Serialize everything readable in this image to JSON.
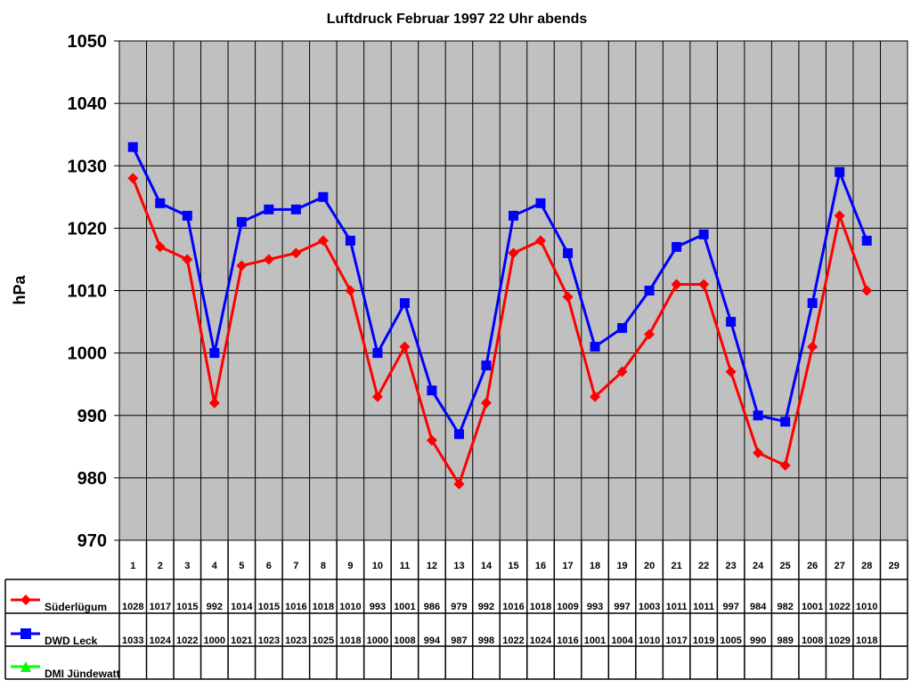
{
  "chart_data": {
    "type": "line",
    "title": "Luftdruck Februar 1997 22 Uhr abends",
    "xlabel": "",
    "ylabel": "hPa",
    "ylim": [
      970,
      1050
    ],
    "yticks": [
      "970",
      "980",
      "990",
      "1000",
      "1010",
      "1020",
      "1030",
      "1040",
      "1050"
    ],
    "grid": true,
    "legend": "data-table-left",
    "categories": [
      "1",
      "2",
      "3",
      "4",
      "5",
      "6",
      "7",
      "8",
      "9",
      "10",
      "11",
      "12",
      "13",
      "14",
      "15",
      "16",
      "17",
      "18",
      "19",
      "20",
      "21",
      "22",
      "23",
      "24",
      "25",
      "26",
      "27",
      "28",
      "29"
    ],
    "series": [
      {
        "name": "Süderlügum",
        "color": "#ff0000",
        "marker": "diamond",
        "values": [
          1028,
          1017,
          1015,
          992,
          1014,
          1015,
          1016,
          1018,
          1010,
          993,
          1001,
          986,
          979,
          992,
          1016,
          1018,
          1009,
          993,
          997,
          1003,
          1011,
          1011,
          997,
          984,
          982,
          1001,
          1022,
          1010,
          null
        ]
      },
      {
        "name": "DWD Leck",
        "color": "#0000ff",
        "marker": "square",
        "values": [
          1033,
          1024,
          1022,
          1000,
          1021,
          1023,
          1023,
          1025,
          1018,
          1000,
          1008,
          994,
          987,
          998,
          1022,
          1024,
          1016,
          1001,
          1004,
          1010,
          1017,
          1019,
          1005,
          990,
          989,
          1008,
          1029,
          1018,
          null
        ]
      },
      {
        "name": "DMI Jündewatt",
        "color": "#00ff00",
        "marker": "triangle",
        "values": [
          null,
          null,
          null,
          null,
          null,
          null,
          null,
          null,
          null,
          null,
          null,
          null,
          null,
          null,
          null,
          null,
          null,
          null,
          null,
          null,
          null,
          null,
          null,
          null,
          null,
          null,
          null,
          null,
          null
        ]
      }
    ],
    "plot_background": "#c0c0c0"
  }
}
